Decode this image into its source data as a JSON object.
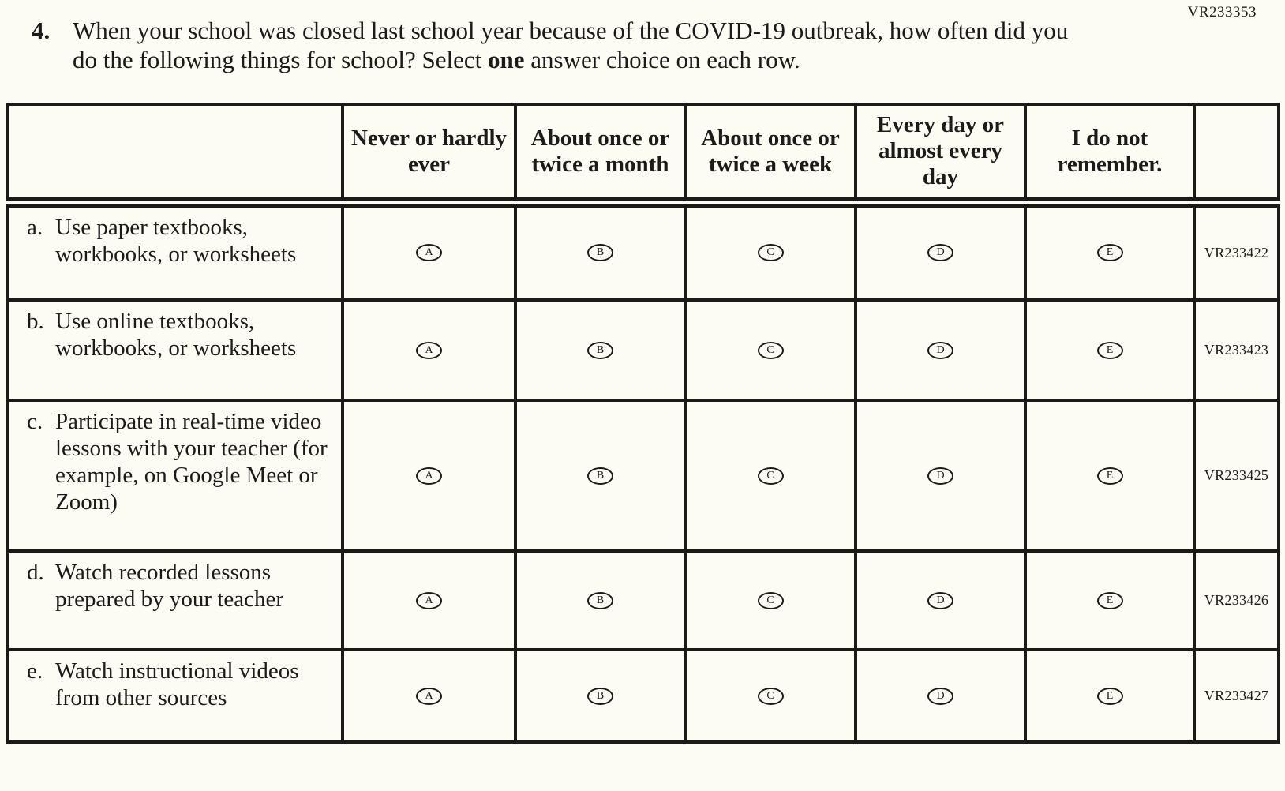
{
  "page": {
    "top_right_code": "VR233353"
  },
  "question": {
    "number": "4.",
    "text_before_bold": "When your school was closed last school year because of the COVID-19 outbreak, how often did you do the following things for school? Select ",
    "bold_word": "one",
    "text_after_bold": " answer choice on each row."
  },
  "table": {
    "columns": [
      "",
      "Never or hardly ever",
      "About once or twice a month",
      "About once or twice a week",
      "Every day or almost every day",
      "I do not remember.",
      ""
    ],
    "choices": [
      "A",
      "B",
      "C",
      "D",
      "E"
    ],
    "rows": [
      {
        "letter": "a.",
        "label": "Use paper textbooks, workbooks, or worksheets",
        "code": "VR233422"
      },
      {
        "letter": "b.",
        "label": "Use online textbooks, workbooks, or worksheets",
        "code": "VR233423"
      },
      {
        "letter": "c.",
        "label": "Participate in real-time video lessons with your teacher (for example, on Google Meet or Zoom)",
        "code": "VR233425"
      },
      {
        "letter": "d.",
        "label": "Watch recorded lessons prepared by your teacher",
        "code": "VR233426"
      },
      {
        "letter": "e.",
        "label": "Watch instructional videos from other sources",
        "code": "VR233427"
      }
    ]
  }
}
